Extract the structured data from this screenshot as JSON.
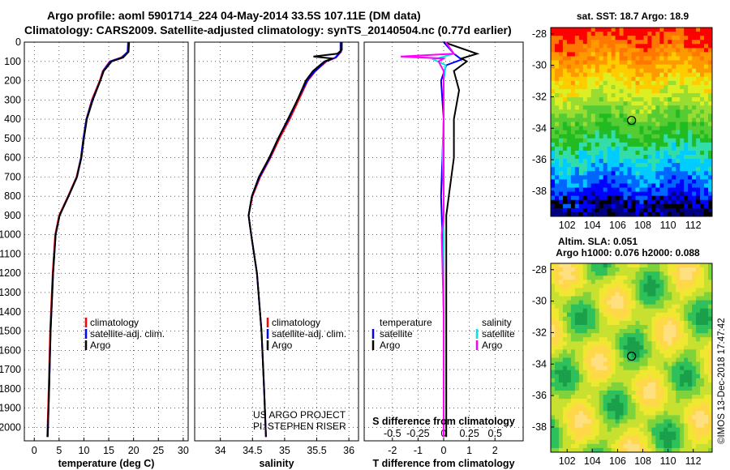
{
  "title": {
    "line1": "Argo profile: aoml 5901714_224 04-May-2014 33.5S 107.11E (DM data)",
    "line2": "Climatology: CARS2009. Satellite-adjusted climatology: synTS_20140504.nc (0.77d earlier)"
  },
  "colors": {
    "climatology": "#ff0000",
    "satellite": "#0000ff",
    "argo": "#000000",
    "sal_satellite": "#00e5e5",
    "sal_argo": "#ff00ff"
  },
  "legend": {
    "climatology": "climatology",
    "satellite": "satellite-adj. clim.",
    "argo": "Argo",
    "diff_temp_header": "temperature",
    "diff_sal_header": "salinity",
    "diff_satellite": "satellite",
    "diff_argo": "Argo"
  },
  "credits": {
    "project": "US ARGO PROJECT",
    "pi": "PI: STEPHEN RISER",
    "imos": "©IMOS 13-Dec-2018 17:47:42"
  },
  "maps": {
    "sst_title": "sat. SST: 18.7 Argo: 18.9",
    "sla_title1": "Altim. SLA: 0.051",
    "sla_title2": "Argo h1000: 0.076 h2000: 0.088",
    "x_ticks": [
      "102",
      "104",
      "106",
      "108",
      "110",
      "112"
    ],
    "y_ticks": [
      "-28",
      "-30",
      "-32",
      "-34",
      "-36",
      "-38"
    ],
    "float_lon": 107.11,
    "float_lat": -33.5,
    "lon_range": [
      100.7,
      113.5
    ],
    "lat_range": [
      -39.6,
      -27.6
    ]
  },
  "chart_data": [
    {
      "type": "line",
      "xlabel": "temperature (deg C)",
      "ylabel": "",
      "xlim": [
        -2,
        31
      ],
      "ylim": [
        2070,
        0
      ],
      "x_ticks": [
        "0",
        "5",
        "10",
        "15",
        "20",
        "25",
        "30"
      ],
      "y_ticks": [
        "0",
        "100",
        "200",
        "300",
        "400",
        "500",
        "600",
        "700",
        "800",
        "900",
        "1000",
        "1100",
        "1200",
        "1300",
        "1400",
        "1500",
        "1600",
        "1700",
        "1800",
        "1900",
        "2000"
      ],
      "grid": true,
      "legend_position": "bottom-left",
      "series": [
        {
          "name": "climatology",
          "depth": [
            0,
            50,
            80,
            100,
            150,
            200,
            300,
            400,
            500,
            600,
            700,
            800,
            900,
            1000,
            1200,
            1500,
            1800,
            2050
          ],
          "values": [
            19.0,
            18.9,
            17.5,
            15.2,
            13.8,
            13.2,
            11.6,
            10.5,
            9.9,
            9.4,
            8.5,
            6.8,
            5.0,
            4.2,
            3.7,
            3.2,
            2.9,
            2.6
          ]
        },
        {
          "name": "satellite-adj. clim.",
          "depth": [
            0,
            50,
            80,
            100,
            150,
            200,
            300,
            400,
            500,
            600,
            700,
            800,
            900,
            1000,
            1200,
            1500,
            1800,
            2050
          ],
          "values": [
            18.9,
            18.8,
            17.7,
            15.3,
            13.9,
            13.3,
            11.7,
            10.5,
            9.9,
            9.4,
            8.6,
            6.9,
            5.1,
            4.3,
            3.8,
            3.3,
            3.0,
            2.7
          ]
        },
        {
          "name": "Argo",
          "depth": [
            0,
            50,
            80,
            100,
            150,
            200,
            300,
            400,
            500,
            600,
            700,
            800,
            900,
            1000,
            1200,
            1500,
            1800,
            2050
          ],
          "values": [
            19.1,
            19.0,
            17.9,
            15.6,
            14.0,
            13.3,
            11.8,
            10.6,
            10.0,
            9.5,
            8.6,
            6.9,
            5.1,
            4.3,
            3.8,
            3.3,
            3.0,
            2.7
          ]
        }
      ]
    },
    {
      "type": "line",
      "xlabel": "salinity",
      "ylabel": "",
      "xlim": [
        33.6,
        36.15
      ],
      "ylim": [
        2070,
        0
      ],
      "x_ticks": [
        "34",
        "34.5",
        "35",
        "35.5",
        "36"
      ],
      "grid": true,
      "legend_position": "bottom-left",
      "series": [
        {
          "name": "climatology",
          "depth": [
            0,
            50,
            80,
            100,
            150,
            200,
            300,
            400,
            500,
            600,
            700,
            800,
            900,
            1000,
            1200,
            1500,
            1800,
            2050
          ],
          "values": [
            35.88,
            35.88,
            35.8,
            35.65,
            35.48,
            35.36,
            35.22,
            35.08,
            34.92,
            34.78,
            34.62,
            34.5,
            34.44,
            34.48,
            34.57,
            34.64,
            34.68,
            34.71
          ]
        },
        {
          "name": "satellite-adj. clim.",
          "depth": [
            0,
            50,
            80,
            100,
            150,
            200,
            300,
            400,
            500,
            600,
            700,
            800,
            900,
            1000,
            1200,
            1500,
            1800,
            2050
          ],
          "values": [
            35.87,
            35.87,
            35.79,
            35.64,
            35.47,
            35.35,
            35.2,
            35.06,
            34.9,
            34.77,
            34.61,
            34.49,
            34.44,
            34.48,
            34.57,
            34.64,
            34.68,
            34.71
          ]
        },
        {
          "name": "Argo",
          "depth": [
            0,
            40,
            60,
            75,
            85,
            100,
            150,
            200,
            300,
            400,
            500,
            600,
            700,
            800,
            900,
            1000,
            1200,
            1500,
            1800,
            2050
          ],
          "values": [
            35.89,
            35.89,
            35.82,
            35.45,
            35.75,
            35.62,
            35.44,
            35.33,
            35.2,
            35.05,
            34.9,
            34.76,
            34.6,
            34.49,
            34.44,
            34.48,
            34.57,
            34.64,
            34.68,
            34.71
          ]
        }
      ]
    },
    {
      "type": "line",
      "xlabel": "T difference from climatology",
      "title": "S difference from climatology",
      "xlim": [
        -3.1,
        3.1
      ],
      "ylim": [
        2070,
        0
      ],
      "x_ticks": [
        "-2",
        "-1",
        "0",
        "1",
        "2"
      ],
      "s_ticks": [
        "-0.5",
        "-0.25",
        "0",
        "0.25",
        "0.5"
      ],
      "grid": true,
      "series": [
        {
          "name": "temperature satellite",
          "depth": [
            0,
            60,
            90,
            120,
            200,
            400,
            600,
            800,
            1000,
            1400,
            2050
          ],
          "values": [
            0.0,
            0.4,
            0.7,
            0.1,
            -0.1,
            0.0,
            -0.05,
            -0.1,
            -0.05,
            0.0,
            0.0
          ]
        },
        {
          "name": "temperature Argo",
          "depth": [
            0,
            60,
            85,
            100,
            150,
            250,
            400,
            600,
            800,
            900,
            1000,
            1400,
            2050
          ],
          "values": [
            0.0,
            1.3,
            0.7,
            0.9,
            0.4,
            0.6,
            0.4,
            0.4,
            0.2,
            0.1,
            0.1,
            0.1,
            0.1
          ]
        },
        {
          "name": "salinity satellite",
          "depth": [
            0,
            60,
            90,
            120,
            200,
            400,
            600,
            800,
            1000,
            1400,
            2050
          ],
          "values": [
            0.02,
            0.1,
            -0.1,
            0.02,
            0.0,
            0.0,
            -0.01,
            0.0,
            0.0,
            0.0,
            0.0
          ]
        },
        {
          "name": "salinity Argo",
          "depth": [
            0,
            60,
            75,
            85,
            100,
            150,
            300,
            600,
            900,
            1000,
            1400,
            2050
          ],
          "values": [
            0.02,
            0.1,
            -0.42,
            0.0,
            -0.05,
            0.0,
            0.0,
            0.0,
            0.0,
            -0.02,
            0.0,
            0.0
          ]
        }
      ]
    }
  ]
}
